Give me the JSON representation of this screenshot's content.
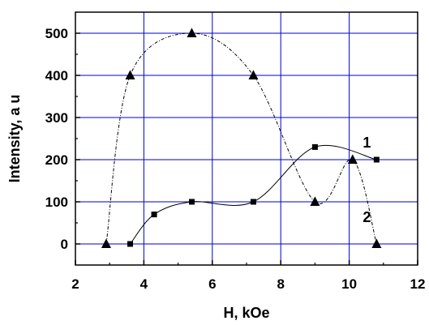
{
  "chart_data": {
    "type": "line",
    "title": "",
    "xlabel": "H, kOe",
    "ylabel": "Intensity, a u",
    "xlim": [
      2,
      12
    ],
    "ylim": [
      -50,
      550
    ],
    "xticks": [
      2,
      4,
      6,
      8,
      10,
      12
    ],
    "yticks": [
      0,
      100,
      200,
      300,
      400,
      500
    ],
    "grid": true,
    "grid_color": "#0000cc",
    "series": [
      {
        "name": "1",
        "marker": "square",
        "line_style": "solid",
        "color": "#000000",
        "x": [
          3.6,
          4.3,
          5.4,
          7.2,
          9.0,
          10.8
        ],
        "y": [
          0,
          70,
          100,
          100,
          230,
          200
        ]
      },
      {
        "name": "2",
        "marker": "triangle",
        "line_style": "dash-dot",
        "color": "#000000",
        "x": [
          2.9,
          3.6,
          5.4,
          7.2,
          9.0,
          10.1,
          10.8
        ],
        "y": [
          0,
          400,
          500,
          400,
          100,
          200,
          0
        ]
      }
    ]
  }
}
